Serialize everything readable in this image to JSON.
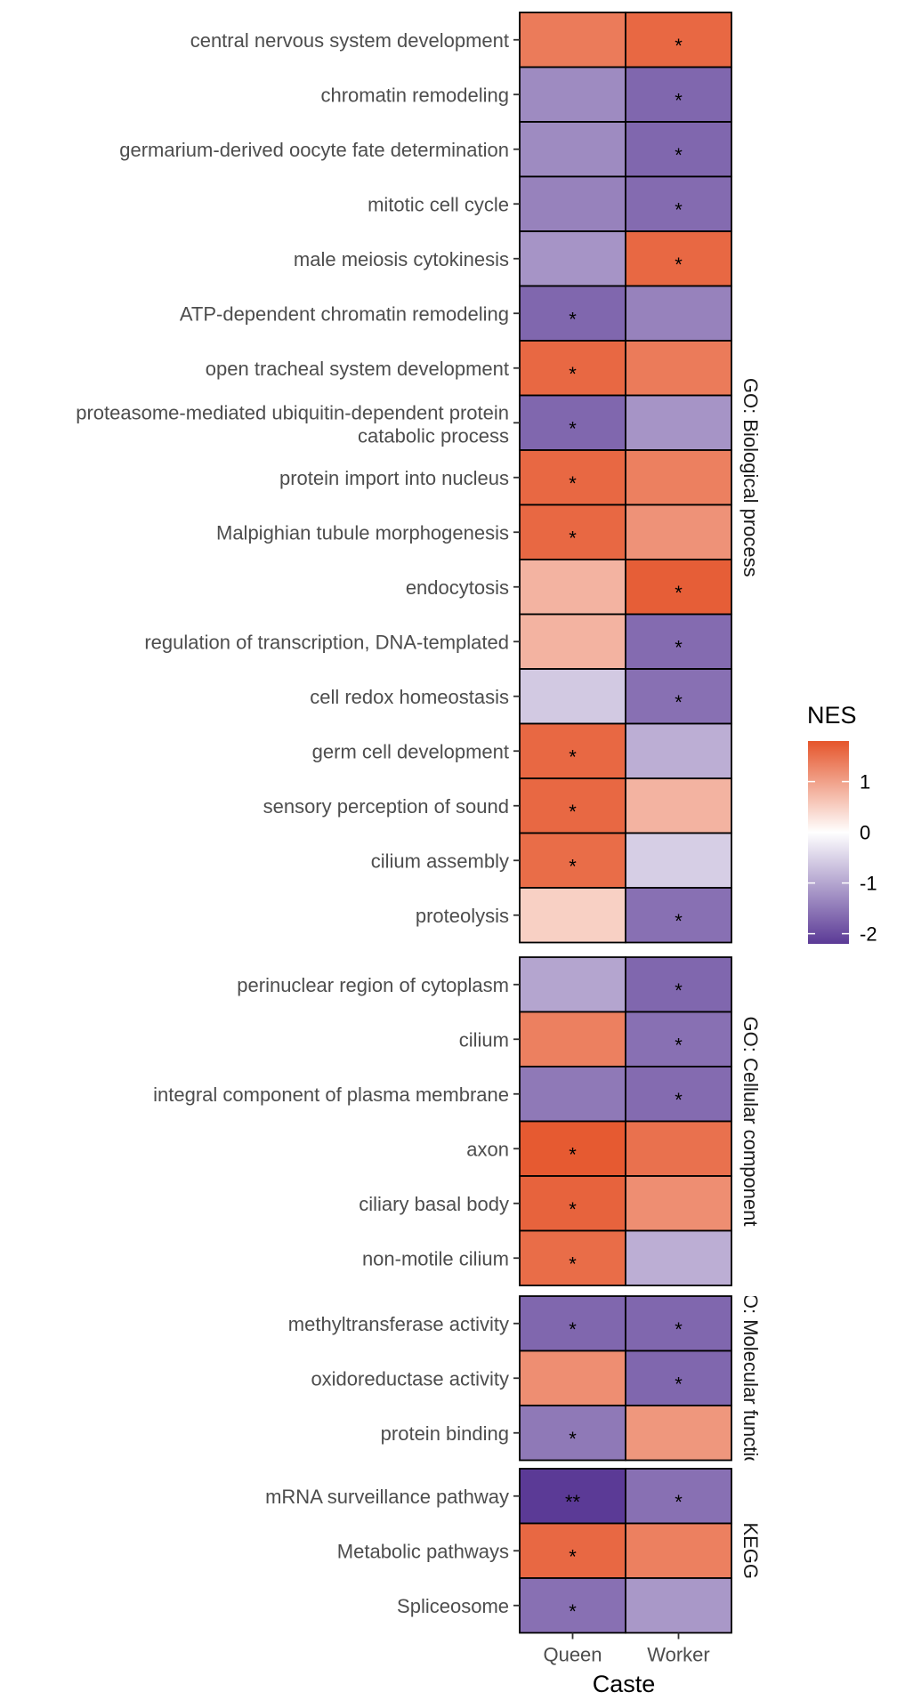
{
  "chart_data": {
    "type": "heatmap",
    "xlabel": "Caste",
    "x_categories": [
      "Queen",
      "Worker"
    ],
    "legend": {
      "title": "NES",
      "ticks": [
        1,
        0,
        -1,
        -2
      ],
      "tick_labels": [
        "1",
        "0",
        "-1",
        "-2"
      ],
      "range": [
        -2.2,
        1.8
      ],
      "colors": {
        "high": "#E5552B",
        "mid": "#FFFFFF",
        "low": "#5B3A96"
      }
    },
    "facets": [
      {
        "label": "GO: Biological process",
        "rows": [
          {
            "term": "central nervous system development",
            "values": [
              1.4,
              1.6
            ],
            "sig": [
              "",
              "*"
            ]
          },
          {
            "term": "chromatin remodeling",
            "values": [
              -1.3,
              -1.7
            ],
            "sig": [
              "",
              "*"
            ]
          },
          {
            "term": "germarium-derived oocyte fate determination",
            "values": [
              -1.3,
              -1.7
            ],
            "sig": [
              "",
              "*"
            ]
          },
          {
            "term": "mitotic cell cycle",
            "values": [
              -1.4,
              -1.65
            ],
            "sig": [
              "",
              "*"
            ]
          },
          {
            "term": "male meiosis cytokinesis",
            "values": [
              -1.2,
              1.6
            ],
            "sig": [
              "",
              "*"
            ]
          },
          {
            "term": "ATP-dependent chromatin remodeling",
            "values": [
              -1.7,
              -1.4
            ],
            "sig": [
              "*",
              ""
            ]
          },
          {
            "term": "open tracheal system development",
            "values": [
              1.6,
              1.4
            ],
            "sig": [
              "*",
              ""
            ]
          },
          {
            "term": "proteasome-mediated ubiquitin-dependent protein catabolic process",
            "values": [
              -1.7,
              -1.2
            ],
            "sig": [
              "*",
              ""
            ]
          },
          {
            "term": "protein import into nucleus",
            "values": [
              1.6,
              1.35
            ],
            "sig": [
              "*",
              ""
            ]
          },
          {
            "term": "Malpighian tubule morphogenesis",
            "values": [
              1.6,
              1.15
            ],
            "sig": [
              "*",
              ""
            ]
          },
          {
            "term": "endocytosis",
            "values": [
              0.8,
              1.7
            ],
            "sig": [
              "",
              "*"
            ]
          },
          {
            "term": "regulation of transcription, DNA-templated",
            "values": [
              0.8,
              -1.65
            ],
            "sig": [
              "",
              "*"
            ]
          },
          {
            "term": "cell redox homeostasis",
            "values": [
              -0.6,
              -1.6
            ],
            "sig": [
              "",
              "*"
            ]
          },
          {
            "term": "germ cell development",
            "values": [
              1.6,
              -0.9
            ],
            "sig": [
              "*",
              ""
            ]
          },
          {
            "term": "sensory perception of sound",
            "values": [
              1.6,
              0.8
            ],
            "sig": [
              "*",
              ""
            ]
          },
          {
            "term": "cilium assembly",
            "values": [
              1.55,
              -0.55
            ],
            "sig": [
              "*",
              ""
            ]
          },
          {
            "term": "proteolysis",
            "values": [
              0.5,
              -1.6
            ],
            "sig": [
              "",
              "*"
            ]
          }
        ]
      },
      {
        "label": "GO: Cellular component",
        "rows": [
          {
            "term": "perinuclear region of cytoplasm",
            "values": [
              -1.0,
              -1.7
            ],
            "sig": [
              "",
              "*"
            ]
          },
          {
            "term": "cilium",
            "values": [
              1.35,
              -1.6
            ],
            "sig": [
              "",
              "*"
            ]
          },
          {
            "term": "integral component of plasma membrane",
            "values": [
              -1.5,
              -1.65
            ],
            "sig": [
              "",
              "*"
            ]
          },
          {
            "term": "axon",
            "values": [
              1.75,
              1.5
            ],
            "sig": [
              "*",
              ""
            ]
          },
          {
            "term": "ciliary basal body",
            "values": [
              1.65,
              1.2
            ],
            "sig": [
              "*",
              ""
            ]
          },
          {
            "term": "non-motile cilium",
            "values": [
              1.55,
              -0.9
            ],
            "sig": [
              "*",
              ""
            ]
          }
        ]
      },
      {
        "label": "GO: Molecular function",
        "rows": [
          {
            "term": "methyltransferase activity",
            "values": [
              -1.7,
              -1.7
            ],
            "sig": [
              "*",
              "*"
            ]
          },
          {
            "term": "oxidoreductase activity",
            "values": [
              1.2,
              -1.7
            ],
            "sig": [
              "",
              "*"
            ]
          },
          {
            "term": "protein binding",
            "values": [
              -1.5,
              1.1
            ],
            "sig": [
              "*",
              ""
            ]
          }
        ]
      },
      {
        "label": "KEGG",
        "rows": [
          {
            "term": "mRNA surveillance pathway",
            "values": [
              -2.2,
              -1.6
            ],
            "sig": [
              "**",
              "*"
            ]
          },
          {
            "term": "Metabolic pathways",
            "values": [
              1.6,
              1.35
            ],
            "sig": [
              "*",
              ""
            ]
          },
          {
            "term": "Spliceosome",
            "values": [
              -1.6,
              -1.15
            ],
            "sig": [
              "*",
              ""
            ]
          }
        ]
      }
    ]
  }
}
